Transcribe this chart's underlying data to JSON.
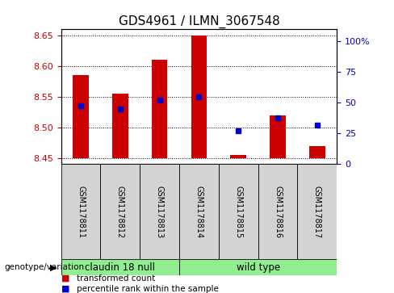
{
  "title": "GDS4961 / ILMN_3067548",
  "samples": [
    "GSM1178811",
    "GSM1178812",
    "GSM1178813",
    "GSM1178814",
    "GSM1178815",
    "GSM1178816",
    "GSM1178817"
  ],
  "bar_bottom": 8.45,
  "bar_tops": [
    8.585,
    8.555,
    8.61,
    8.65,
    8.455,
    8.52,
    8.47
  ],
  "blue_values": [
    8.535,
    8.53,
    8.545,
    8.55,
    8.495,
    8.515,
    8.503
  ],
  "ylim_left": [
    8.44,
    8.66
  ],
  "yticks_left": [
    8.45,
    8.5,
    8.55,
    8.6,
    8.65
  ],
  "ylim_right": [
    0,
    110
  ],
  "yticks_right": [
    0,
    25,
    50,
    75,
    100
  ],
  "ytick_right_labels": [
    "0",
    "25",
    "50",
    "75",
    "100%"
  ],
  "bar_color": "#cc0000",
  "blue_color": "#0000cc",
  "group1_label": "claudin 18 null",
  "group2_label": "wild type",
  "group1_indices": [
    0,
    1,
    2
  ],
  "group2_indices": [
    3,
    4,
    5,
    6
  ],
  "group_bg_color": "#90ee90",
  "sample_bg_color": "#d3d3d3",
  "legend_red_label": "transformed count",
  "legend_blue_label": "percentile rank within the sample",
  "genotype_label": "genotype/variation",
  "grid_color": "#000000",
  "title_fontsize": 11,
  "tick_fontsize": 8,
  "label_fontsize": 8,
  "bar_width": 0.4
}
